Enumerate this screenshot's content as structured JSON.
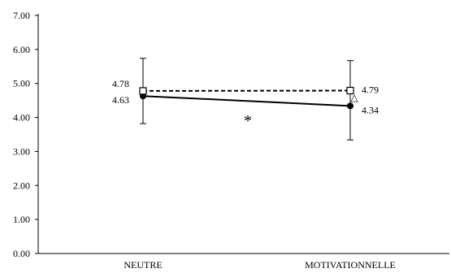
{
  "chart_data": {
    "type": "line",
    "categories": [
      "NEUTRE",
      "MOTIVATIONNELLE"
    ],
    "ylim": [
      0,
      7
    ],
    "yticks": [
      "0.00",
      "1.00",
      "2.00",
      "3.00",
      "4.00",
      "5.00",
      "6.00",
      "7.00"
    ],
    "grid": false,
    "series": [
      {
        "line_style": "solid",
        "marker": "filled-circle",
        "color": "#000000",
        "values": [
          4.63,
          4.34
        ],
        "labels": [
          "4.63",
          "4.34"
        ],
        "error_upper": [
          5.74,
          5.67
        ],
        "error_lower": [
          3.82,
          3.34
        ]
      },
      {
        "line_style": "dashed",
        "marker": "open-square",
        "color": "#000000",
        "values": [
          4.78,
          4.79
        ],
        "labels": [
          "4.78",
          "4.79"
        ]
      }
    ],
    "annotations": [
      {
        "text": "*",
        "near": "between-series-midpoint"
      },
      {
        "text": "△",
        "near": "MOTIVATIONNELLE-series-2"
      }
    ]
  }
}
